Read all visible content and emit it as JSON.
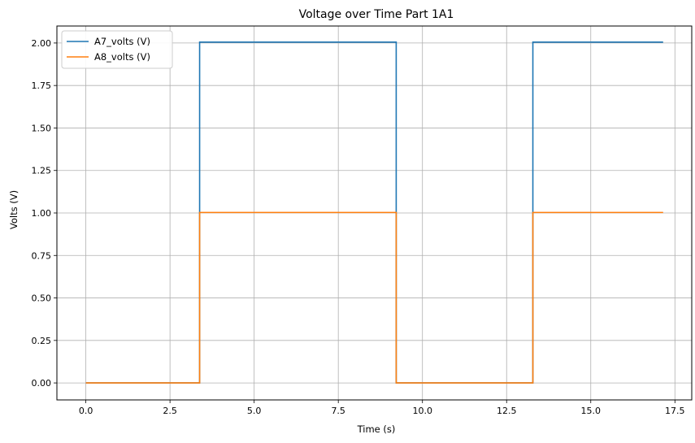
{
  "chart_data": {
    "type": "line",
    "title": "Voltage over Time Part 1A1",
    "xlabel": "Time (s)",
    "ylabel": "Volts (V)",
    "xlim": [
      -0.86,
      18.0
    ],
    "ylim": [
      -0.1,
      2.1
    ],
    "x_ticks": [
      0.0,
      2.5,
      5.0,
      7.5,
      10.0,
      12.5,
      15.0,
      17.5
    ],
    "x_tick_labels": [
      "0.0",
      "2.5",
      "5.0",
      "7.5",
      "10.0",
      "12.5",
      "15.0",
      "17.5"
    ],
    "y_ticks": [
      0.0,
      0.25,
      0.5,
      0.75,
      1.0,
      1.25,
      1.5,
      1.75,
      2.0
    ],
    "y_tick_labels": [
      "0.00",
      "0.25",
      "0.50",
      "0.75",
      "1.00",
      "1.25",
      "1.50",
      "1.75",
      "2.00"
    ],
    "grid": true,
    "legend_position": "top-left",
    "series": [
      {
        "name": "A7_volts (V)",
        "color": "#1f77b4",
        "x": [
          0.0,
          3.38,
          3.38,
          9.22,
          9.22,
          13.28,
          13.28,
          17.15
        ],
        "y": [
          0.0,
          0.0,
          2.005,
          2.005,
          0.0,
          0.0,
          2.005,
          2.005
        ]
      },
      {
        "name": "A8_volts (V)",
        "color": "#ff7f0e",
        "x": [
          0.0,
          3.38,
          3.38,
          9.22,
          9.22,
          13.28,
          13.28,
          17.15
        ],
        "y": [
          0.0,
          0.0,
          1.003,
          1.003,
          0.0,
          0.0,
          1.003,
          1.003
        ]
      }
    ]
  }
}
